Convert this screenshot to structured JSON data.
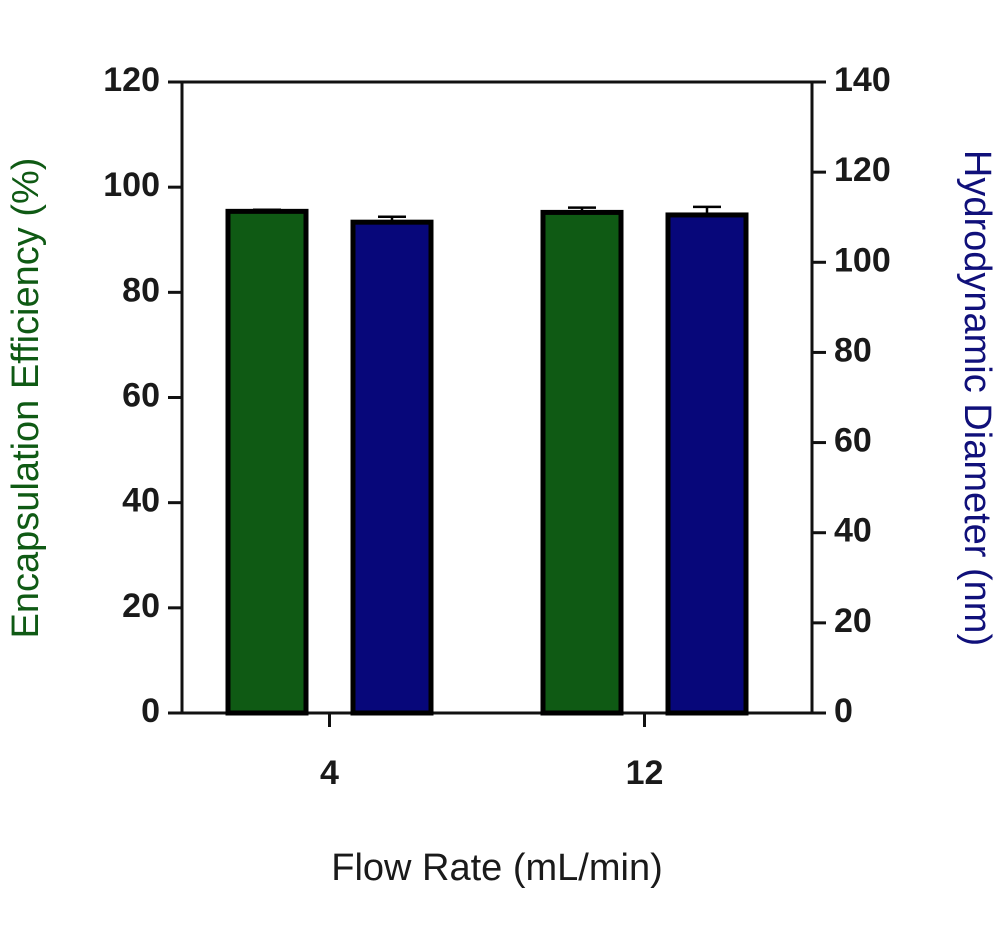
{
  "chart_data": {
    "type": "bar",
    "x_label": "Flow Rate (mL/min)",
    "y_label": "Encapsulation Efficiency (%)",
    "y2_label": "Hydrodynamic Diameter (nm)",
    "y_label_color": "#0f5a14",
    "y2_label_color": "#10107a",
    "categories": [
      "4",
      "12"
    ],
    "series": [
      {
        "color": "#0f5a14",
        "axis": "y",
        "values": [
          95.4,
          95.2
        ],
        "errors": [
          0.3,
          0.9
        ]
      },
      {
        "color": "#07077a",
        "axis": "y2",
        "values": [
          108.9,
          110.5
        ],
        "errors": [
          1.2,
          1.8
        ]
      }
    ],
    "ylim": [
      0,
      120
    ],
    "yticks": [
      0,
      20,
      40,
      60,
      80,
      100,
      120
    ],
    "y2lim": [
      0,
      140
    ],
    "y2ticks": [
      0,
      20,
      40,
      60,
      80,
      100,
      120,
      140
    ]
  }
}
